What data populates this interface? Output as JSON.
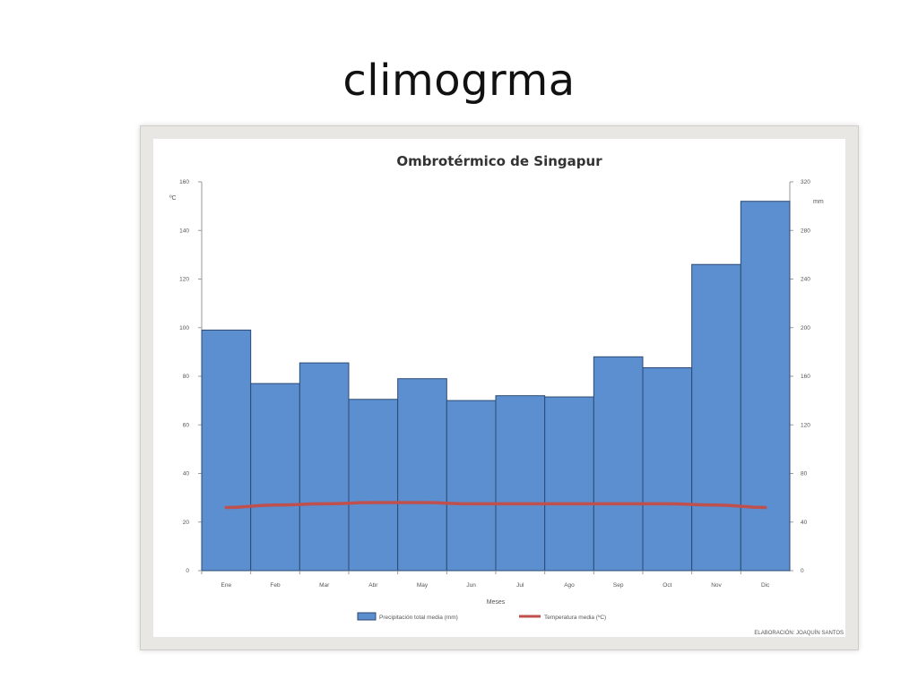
{
  "slide": {
    "title": "climogrma"
  },
  "chart_data": {
    "type": "bar",
    "title": "Ombrotérmico de Singapur",
    "xlabel": "Meses",
    "ylabel_left": "ºC",
    "ylabel_right": "mm",
    "categories": [
      "Ene",
      "Feb",
      "Mar",
      "Abr",
      "May",
      "Jun",
      "Jul",
      "Ago",
      "Sep",
      "Oct",
      "Nov",
      "Dic"
    ],
    "y_left_lim": [
      0,
      160
    ],
    "y_left_ticks": [
      "0",
      "20",
      "40",
      "60",
      "80",
      "100",
      "120",
      "140",
      "160"
    ],
    "y_right_lim": [
      0,
      320
    ],
    "y_right_ticks": [
      "0",
      "40",
      "80",
      "120",
      "160",
      "200",
      "240",
      "280",
      "320"
    ],
    "grid": false,
    "legend_position": "bottom",
    "series": [
      {
        "name": "Precipitación total media (mm)",
        "type": "bar",
        "axis": "right",
        "color": "#5b8fcf",
        "values": [
          198,
          154,
          171,
          141,
          158,
          140,
          144,
          143,
          176,
          167,
          252,
          304
        ]
      },
      {
        "name": "Temperatura media (ºC)",
        "type": "line",
        "axis": "left",
        "color": "#c0504d",
        "values": [
          26,
          27,
          27.5,
          28,
          28,
          27.5,
          27.5,
          27.5,
          27.5,
          27.5,
          27,
          26
        ]
      }
    ],
    "footer_note": "ELABORACIÓN: JOAQUÍN SANTOS"
  }
}
